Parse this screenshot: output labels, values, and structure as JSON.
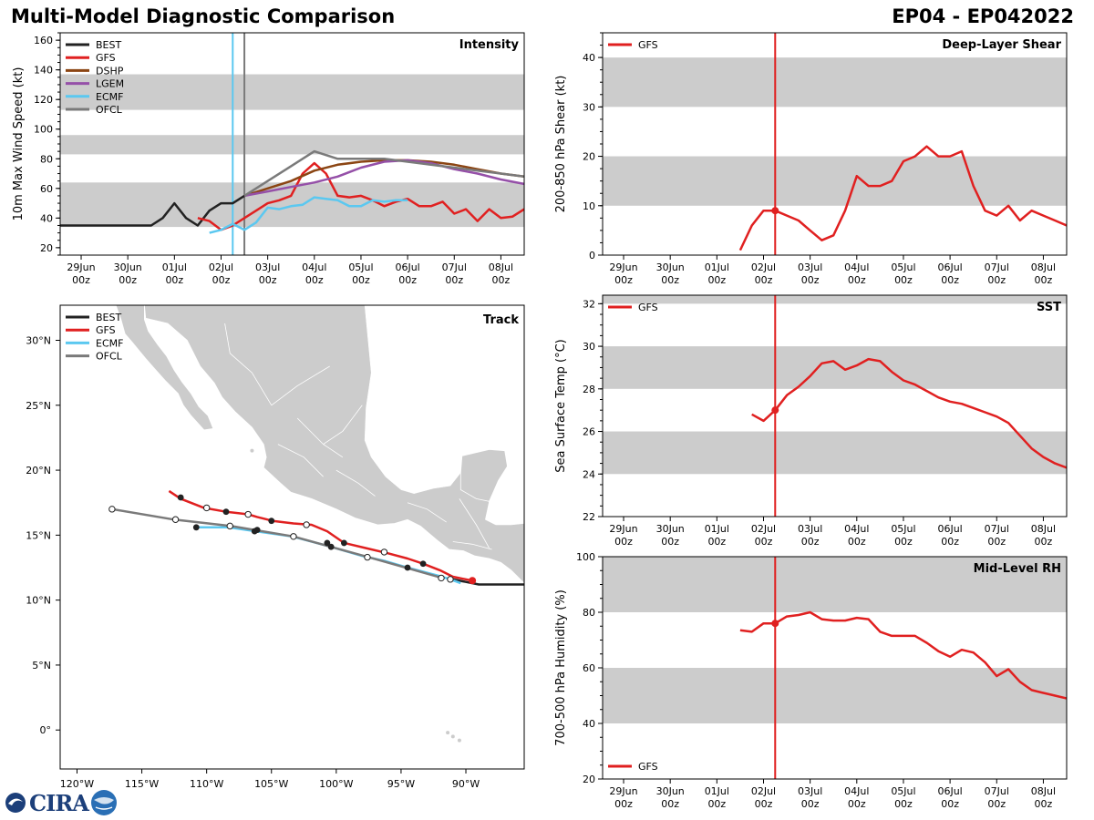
{
  "header": {
    "title": "Multi-Model Diagnostic Comparison",
    "storm_id": "EP04 - EP042022"
  },
  "logo": {
    "text": "CIRA",
    "icon": "cira-swirl"
  },
  "colors": {
    "BEST": "#222222",
    "GFS": "#e02020",
    "DSHP": "#8b4513",
    "LGEM": "#9550a8",
    "ECMF": "#5bc8f0",
    "OFCL": "#7a7a7a",
    "band": "#cccccc",
    "land": "#cccccc",
    "vline_gfs": "#e02020",
    "vline_ecmf": "#5bc8f0",
    "vline_ofcl": "#7a7a7a"
  },
  "time_ticks": [
    "29Jun\n00z",
    "30Jun\n00z",
    "01Jul\n00z",
    "02Jul\n00z",
    "03Jul\n00z",
    "04Jul\n00z",
    "05Jul\n00z",
    "06Jul\n00z",
    "07Jul\n00z",
    "08Jul\n00z"
  ],
  "chart_data": [
    {
      "id": "intensity",
      "type": "line",
      "title": "Intensity",
      "ylabel": "10m Max Wind Speed (kt)",
      "xlim": [
        -0.45,
        9.5
      ],
      "ylim": [
        15,
        165
      ],
      "yticks": [
        20,
        40,
        60,
        80,
        100,
        120,
        140,
        160
      ],
      "bands": [
        [
          34,
          64
        ],
        [
          83,
          96
        ],
        [
          113,
          137
        ]
      ],
      "vlines": [
        {
          "x": 3.25,
          "series": "ECMF"
        },
        {
          "x": 3.5,
          "series": "OFCL"
        }
      ],
      "legend": [
        "BEST",
        "GFS",
        "DSHP",
        "LGEM",
        "ECMF",
        "OFCL"
      ],
      "series": [
        {
          "name": "BEST",
          "x": [
            -0.45,
            0,
            0.5,
            1,
            1.5,
            1.75,
            2,
            2.25,
            2.5,
            2.75,
            3,
            3.25,
            3.5
          ],
          "y": [
            35,
            35,
            35,
            35,
            35,
            40,
            50,
            40,
            35,
            45,
            50,
            50,
            55
          ]
        },
        {
          "name": "GFS",
          "x": [
            2.5,
            2.75,
            3,
            3.25,
            3.5,
            3.75,
            4,
            4.25,
            4.5,
            4.75,
            5,
            5.25,
            5.5,
            5.75,
            6,
            6.25,
            6.5,
            6.75,
            7,
            7.25,
            7.5,
            7.75,
            8,
            8.25,
            8.5,
            8.75,
            9,
            9.25,
            9.5
          ],
          "y": [
            40,
            38,
            32,
            35,
            40,
            45,
            50,
            52,
            55,
            70,
            77,
            70,
            55,
            54,
            55,
            52,
            48,
            51,
            53,
            48,
            48,
            51,
            43,
            46,
            38,
            46,
            40,
            41,
            46
          ]
        },
        {
          "name": "DSHP",
          "x": [
            3.5,
            4,
            4.5,
            5,
            5.5,
            6,
            6.5,
            7,
            7.5,
            8,
            8.5,
            9,
            9.5
          ],
          "y": [
            55,
            60,
            65,
            72,
            76,
            78,
            79,
            79,
            78,
            76,
            73,
            70,
            68
          ]
        },
        {
          "name": "LGEM",
          "x": [
            3.5,
            4,
            4.5,
            5,
            5.5,
            6,
            6.5,
            7,
            7.5,
            8,
            8.5,
            9,
            9.5
          ],
          "y": [
            55,
            58,
            61,
            64,
            68,
            74,
            78,
            79,
            77,
            73,
            70,
            66,
            63
          ]
        },
        {
          "name": "ECMF",
          "x": [
            2.75,
            3,
            3.25,
            3.5,
            3.75,
            4,
            4.25,
            4.5,
            4.75,
            5,
            5.25,
            5.5,
            5.75,
            6,
            6.25,
            6.5,
            6.75,
            7
          ],
          "y": [
            30,
            32,
            36,
            32,
            37,
            47,
            46,
            48,
            49,
            54,
            53,
            52,
            48,
            48,
            52,
            51,
            52,
            52
          ]
        },
        {
          "name": "OFCL",
          "x": [
            3.5,
            4,
            4.5,
            5,
            5.5,
            6,
            6.5,
            7,
            7.5,
            8,
            8.5,
            9,
            9.5
          ],
          "y": [
            55,
            65,
            75,
            85,
            80,
            80,
            80,
            78,
            76,
            74,
            72,
            70,
            68
          ]
        }
      ]
    },
    {
      "id": "shear",
      "type": "line",
      "title": "Deep-Layer Shear",
      "ylabel": "200-850 hPa Shear (kt)",
      "xlim": [
        -0.45,
        9.5
      ],
      "ylim": [
        0,
        45
      ],
      "yticks": [
        0,
        10,
        20,
        30,
        40
      ],
      "bands": [
        [
          10,
          20
        ],
        [
          30,
          40
        ]
      ],
      "vlines": [
        {
          "x": 3.25,
          "series": "GFS"
        }
      ],
      "marker": {
        "x": 3.25,
        "y": 9
      },
      "legend": [
        "GFS"
      ],
      "series": [
        {
          "name": "GFS",
          "x": [
            2.5,
            2.75,
            3,
            3.25,
            3.5,
            3.75,
            4,
            4.25,
            4.5,
            4.75,
            5,
            5.25,
            5.5,
            5.75,
            6,
            6.25,
            6.5,
            6.75,
            7,
            7.25,
            7.5,
            7.75,
            8,
            8.25,
            8.5,
            8.75,
            9,
            9.25,
            9.5
          ],
          "y": [
            1,
            6,
            9,
            9,
            8,
            7,
            5,
            3,
            4,
            9,
            16,
            14,
            14,
            15,
            19,
            20,
            22,
            20,
            20,
            21,
            14,
            9,
            8,
            10,
            7,
            9,
            8,
            7,
            6
          ]
        }
      ]
    },
    {
      "id": "sst",
      "type": "line",
      "title": "SST",
      "ylabel": "Sea Surface Temp (°C)",
      "xlim": [
        -0.45,
        9.5
      ],
      "ylim": [
        22,
        32.4
      ],
      "yticks": [
        22,
        24,
        26,
        28,
        30,
        32
      ],
      "bands": [
        [
          24,
          26
        ],
        [
          28,
          30
        ],
        [
          32,
          34
        ]
      ],
      "vlines": [
        {
          "x": 3.25,
          "series": "GFS"
        }
      ],
      "marker": {
        "x": 3.25,
        "y": 27
      },
      "legend": [
        "GFS"
      ],
      "series": [
        {
          "name": "GFS",
          "x": [
            2.75,
            3,
            3.25,
            3.5,
            3.75,
            4,
            4.25,
            4.5,
            4.75,
            5,
            5.25,
            5.5,
            5.75,
            6,
            6.25,
            6.5,
            6.75,
            7,
            7.25,
            7.5,
            7.75,
            8,
            8.25,
            8.5,
            8.75,
            9,
            9.25,
            9.5
          ],
          "y": [
            26.8,
            26.5,
            27,
            27.7,
            28.1,
            28.6,
            29.2,
            29.3,
            28.9,
            29.1,
            29.4,
            29.3,
            28.8,
            28.4,
            28.2,
            27.9,
            27.6,
            27.4,
            27.3,
            27.1,
            26.9,
            26.7,
            26.4,
            25.8,
            25.2,
            24.8,
            24.5,
            24.3
          ]
        }
      ]
    },
    {
      "id": "rh",
      "type": "line",
      "title": "Mid-Level RH",
      "ylabel": "700-500 hPa Humidity (%)",
      "xlim": [
        -0.45,
        9.5
      ],
      "ylim": [
        20,
        100
      ],
      "yticks": [
        20,
        40,
        60,
        80,
        100
      ],
      "bands": [
        [
          40,
          60
        ],
        [
          80,
          100
        ]
      ],
      "vlines": [
        {
          "x": 3.25,
          "series": "GFS"
        }
      ],
      "marker": {
        "x": 3.25,
        "y": 76
      },
      "legend": [
        "GFS"
      ],
      "series": [
        {
          "name": "GFS",
          "x": [
            2.5,
            2.75,
            3,
            3.25,
            3.5,
            3.75,
            4,
            4.25,
            4.5,
            4.75,
            5,
            5.25,
            5.5,
            5.75,
            6,
            6.25,
            6.5,
            6.75,
            7,
            7.25,
            7.5,
            7.75,
            8,
            8.25,
            8.5,
            8.75,
            9,
            9.25,
            9.5
          ],
          "y": [
            73.5,
            73,
            76,
            76,
            78.5,
            79,
            80,
            77.5,
            77,
            77,
            78,
            77.5,
            73,
            71.5,
            71.5,
            71.5,
            69,
            66,
            64,
            66.5,
            65.5,
            62,
            57,
            59.5,
            55,
            52,
            51,
            50,
            49
          ]
        }
      ]
    }
  ],
  "track": {
    "title": "Track",
    "lon_range": [
      -121.3,
      -85.5
    ],
    "lat_range": [
      -3,
      32.7
    ],
    "lon_ticks": [
      -120,
      -115,
      -110,
      -105,
      -100,
      -95,
      -90
    ],
    "lon_labels": [
      "120°W",
      "115°W",
      "110°W",
      "105°W",
      "100°W",
      "95°W",
      "90°W"
    ],
    "lat_ticks": [
      0,
      5,
      10,
      15,
      20,
      25,
      30
    ],
    "lat_labels": [
      "0°",
      "5°N",
      "10°N",
      "15°N",
      "20°N",
      "25°N",
      "30°N"
    ],
    "legend": [
      "BEST",
      "GFS",
      "ECMF",
      "OFCL"
    ],
    "series": [
      {
        "name": "BEST",
        "lon": [
          -85.5,
          -87,
          -88,
          -89,
          -90,
          -91
        ],
        "lat": [
          11.2,
          11.2,
          11.2,
          11.2,
          11.4,
          11.6
        ]
      },
      {
        "name": "GFS",
        "lon": [
          -89.5,
          -91,
          -92,
          -93.3,
          -94.5,
          -96,
          -97.7,
          -99.4,
          -100.7,
          -101.9,
          -103.3,
          -104.9,
          -106.1,
          -106.8,
          -108.5,
          -110.2,
          -112,
          -112.9
        ],
        "lat": [
          11.5,
          11.8,
          12.3,
          12.8,
          13.2,
          13.6,
          14.0,
          14.4,
          15.3,
          15.8,
          15.9,
          16.1,
          16.4,
          16.6,
          16.8,
          17.1,
          17.8,
          18.4
        ]
      },
      {
        "name": "ECMF",
        "lon": [
          -90.4,
          -91.2,
          -92.2,
          -94.5,
          -96.2,
          -98,
          -100.4,
          -103.4,
          -106.2,
          -108.3,
          -110.8
        ],
        "lat": [
          11.3,
          11.6,
          11.9,
          12.5,
          13.0,
          13.4,
          14.1,
          14.9,
          15.3,
          15.6,
          15.6
        ]
      },
      {
        "name": "OFCL",
        "lon": [
          -91.8,
          -97.5,
          -103.3,
          -108.1,
          -112.5,
          -117.3
        ],
        "lat": [
          11.7,
          13.3,
          14.9,
          15.7,
          16.2,
          17.0
        ]
      }
    ],
    "filled_markers": [
      [
        -112,
        17.9
      ],
      [
        -108.5,
        16.8
      ],
      [
        -105,
        16.1
      ],
      [
        -99.4,
        14.4
      ],
      [
        -93.3,
        12.8
      ],
      [
        -106.1,
        15.4
      ],
      [
        -100.4,
        14.1
      ],
      [
        -94.5,
        12.5
      ],
      [
        -110.8,
        15.6
      ],
      [
        -106.3,
        15.3
      ],
      [
        -100.7,
        14.4
      ]
    ],
    "open_markers": [
      [
        -117.3,
        17.0
      ],
      [
        -112.4,
        16.2
      ],
      [
        -110,
        17.1
      ],
      [
        -106.8,
        16.6
      ],
      [
        -102.3,
        15.8
      ],
      [
        -96.3,
        13.7
      ],
      [
        -97.6,
        13.3
      ],
      [
        -103.3,
        14.9
      ],
      [
        -108.2,
        15.7
      ],
      [
        -91.2,
        11.6
      ],
      [
        -91.9,
        11.7
      ]
    ],
    "end_marker": {
      "lon": -89.5,
      "lat": 11.5
    }
  }
}
